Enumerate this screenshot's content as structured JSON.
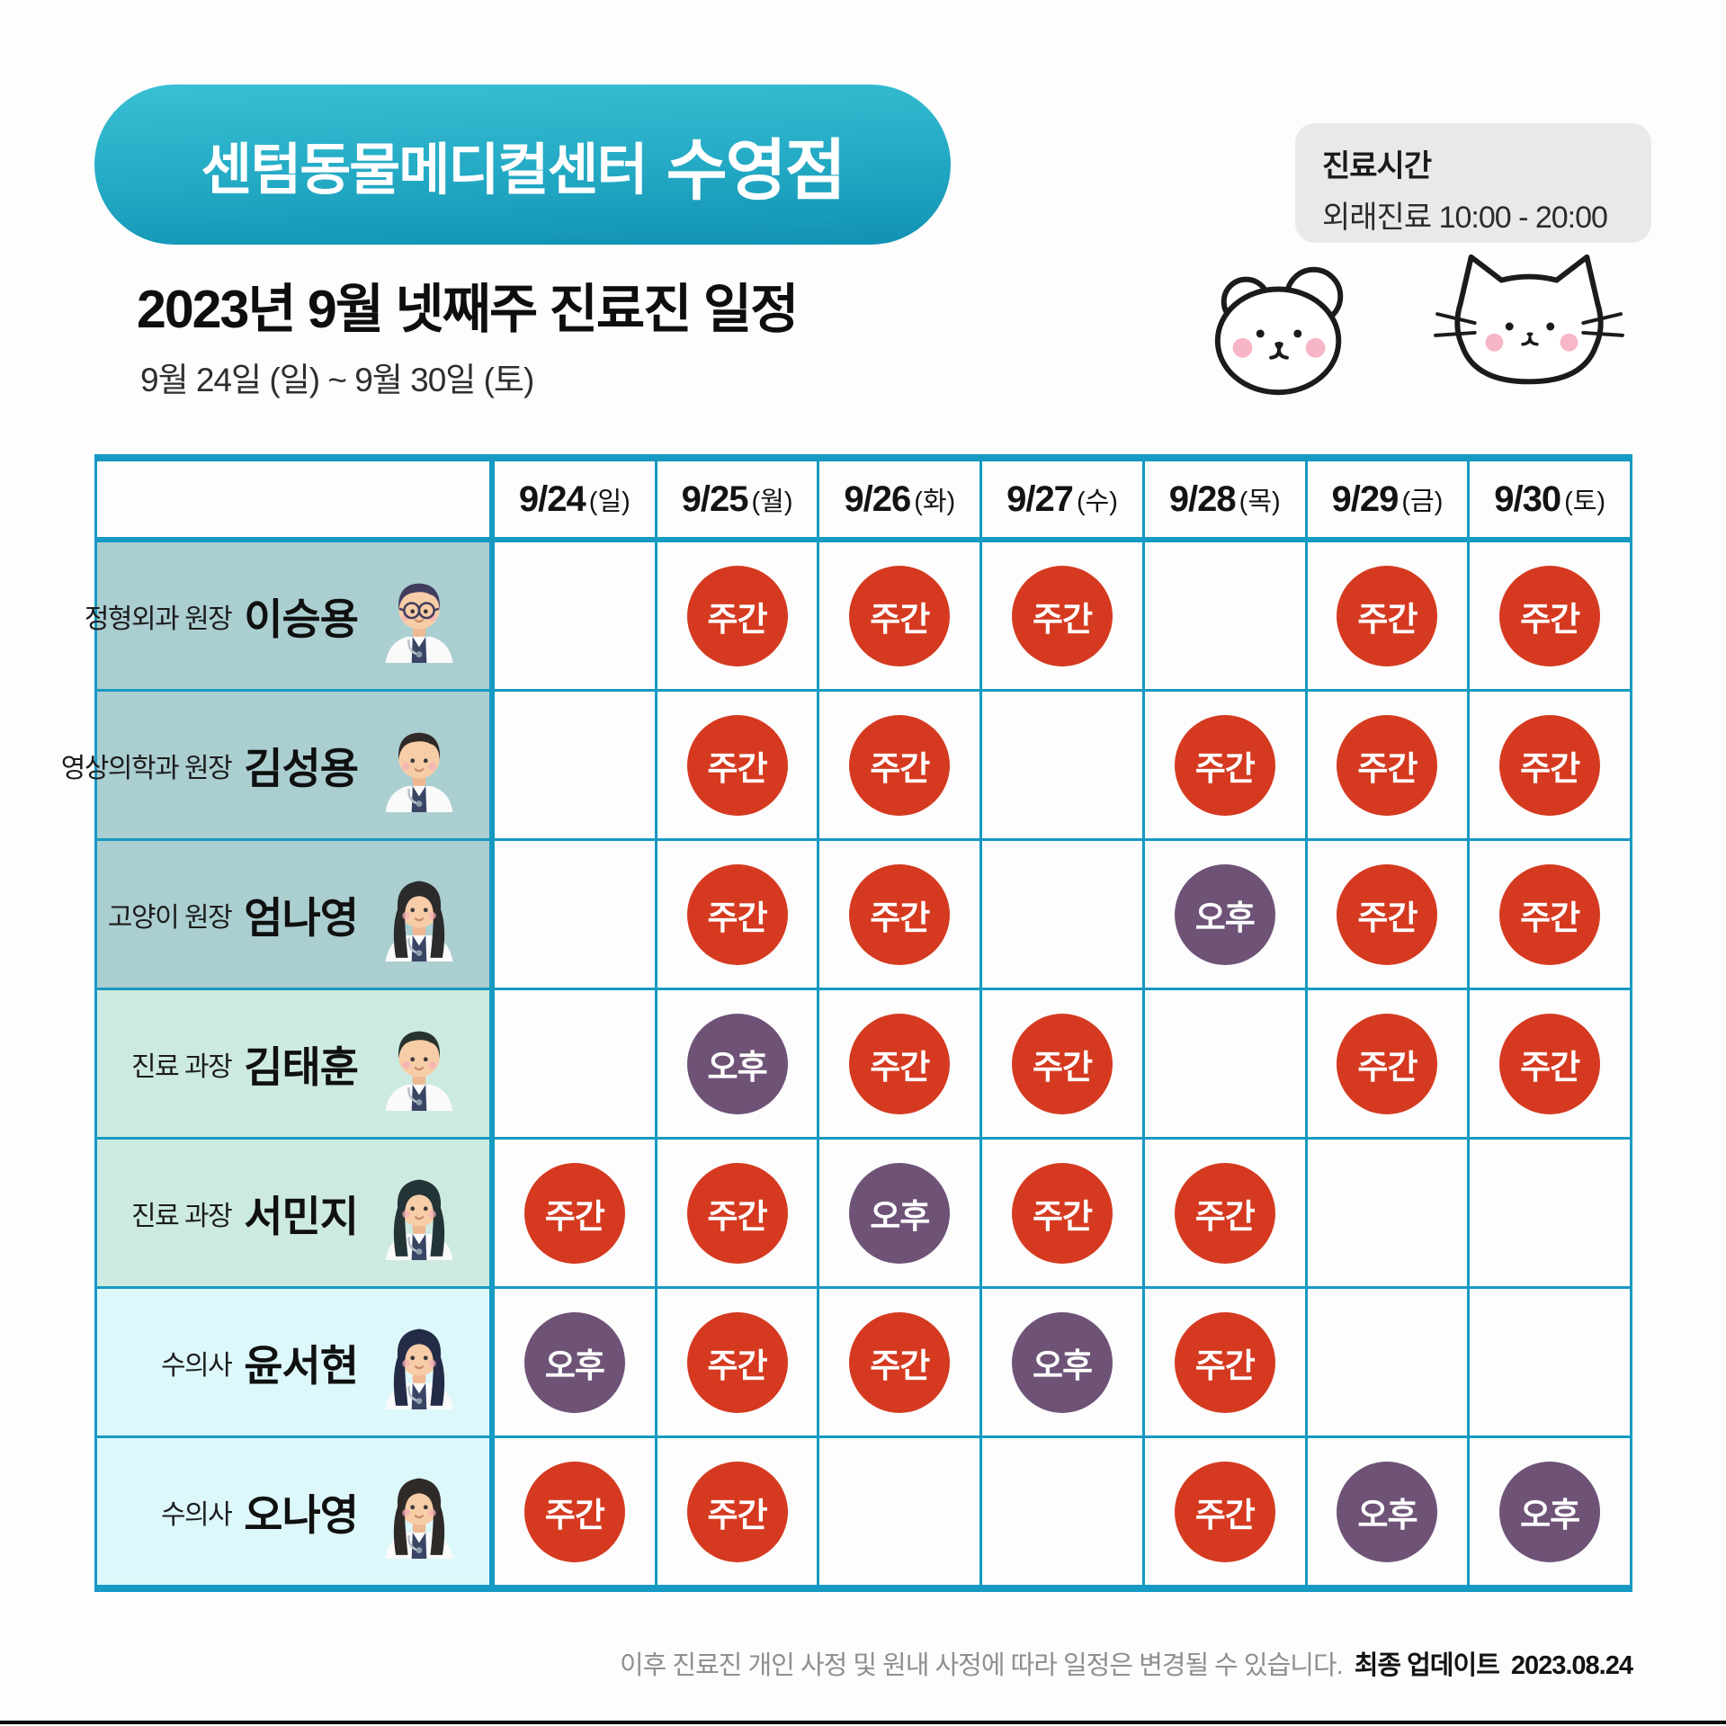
{
  "banner": {
    "clinic_name": "센텀동물메디컬센터",
    "branch_name": "수영점"
  },
  "hours_box": {
    "title": "진료시간",
    "detail": "외래진료 10:00 - 20:00"
  },
  "heading": {
    "title": "2023년 9월 넷째주 진료진 일정",
    "date_range": "9월 24일 (일) ~ 9월 30일 (토)"
  },
  "icons": {
    "dog": "dog-doodle",
    "cat": "cat-doodle"
  },
  "shift_types": {
    "day": {
      "label": "주간",
      "color": "#d53a20"
    },
    "afternoon": {
      "label": "오후",
      "color": "#6e5377"
    }
  },
  "table": {
    "border_color": "#1699c2",
    "group_colors": {
      "1": "#abced1",
      "2": "#cdeae1",
      "3": "#ddf8fb"
    },
    "days": [
      {
        "date": "9/24",
        "weekday": "(일)"
      },
      {
        "date": "9/25",
        "weekday": "(월)"
      },
      {
        "date": "9/26",
        "weekday": "(화)"
      },
      {
        "date": "9/27",
        "weekday": "(수)"
      },
      {
        "date": "9/28",
        "weekday": "(목)"
      },
      {
        "date": "9/29",
        "weekday": "(금)"
      },
      {
        "date": "9/30",
        "weekday": "(토)"
      }
    ],
    "staff": [
      {
        "role": "정형외과 원장",
        "name": "이승용",
        "group": 1,
        "avatar": {
          "hair": "short",
          "color": "#413d5e",
          "glasses": true
        },
        "schedule": [
          "",
          "day",
          "day",
          "day",
          "",
          "day",
          "day"
        ]
      },
      {
        "role": "영상의학과 원장",
        "name": "김성용",
        "group": 1,
        "avatar": {
          "hair": "short",
          "color": "#2f2a28",
          "glasses": false
        },
        "schedule": [
          "",
          "day",
          "day",
          "",
          "day",
          "day",
          "day"
        ]
      },
      {
        "role": "고양이 원장",
        "name": "엄나영",
        "group": 1,
        "avatar": {
          "hair": "long",
          "color": "#2b2b2b",
          "glasses": false
        },
        "schedule": [
          "",
          "day",
          "day",
          "",
          "afternoon",
          "day",
          "day"
        ]
      },
      {
        "role": "진료 과장",
        "name": "김태훈",
        "group": 2,
        "avatar": {
          "hair": "short",
          "color": "#27332e",
          "glasses": false
        },
        "schedule": [
          "",
          "afternoon",
          "day",
          "day",
          "",
          "day",
          "day"
        ]
      },
      {
        "role": "진료 과장",
        "name": "서민지",
        "group": 2,
        "avatar": {
          "hair": "long",
          "color": "#233436",
          "glasses": false
        },
        "schedule": [
          "day",
          "day",
          "afternoon",
          "day",
          "day",
          "",
          ""
        ]
      },
      {
        "role": "수의사",
        "name": "윤서현",
        "group": 3,
        "avatar": {
          "hair": "long",
          "color": "#232b47",
          "glasses": false
        },
        "schedule": [
          "afternoon",
          "day",
          "day",
          "afternoon",
          "day",
          "",
          ""
        ]
      },
      {
        "role": "수의사",
        "name": "오나영",
        "group": 3,
        "avatar": {
          "hair": "long",
          "color": "#2e2a28",
          "glasses": false
        },
        "schedule": [
          "day",
          "day",
          "",
          "",
          "day",
          "afternoon",
          "afternoon"
        ]
      }
    ]
  },
  "footer": {
    "disclaimer": "이후 진료진 개인 사정 및 원내 사정에 따라 일정은 변경될 수 있습니다.",
    "updated_label": "최종 업데이트",
    "updated_date": "2023.08.24"
  }
}
